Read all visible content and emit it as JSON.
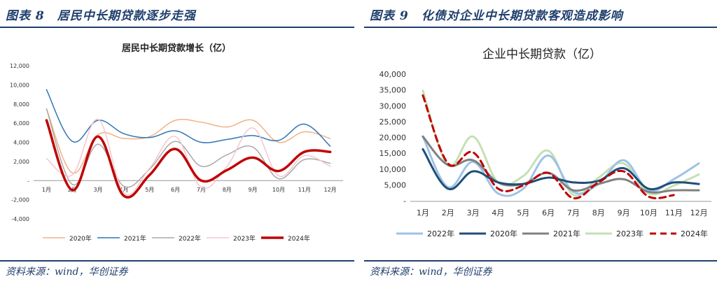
{
  "left": {
    "figure_label": "图表 8",
    "heading": "居民中长期贷款逐步走强",
    "source": "资料来源：wind，华创证券"
  },
  "right": {
    "figure_label": "图表 9",
    "heading": "化债对企业中长期贷款客观造成影响",
    "source": "资料来源：wind，华创证券"
  },
  "chart_data": [
    {
      "type": "line",
      "title": "居民中长期贷款增长（亿）",
      "categories": [
        "1月",
        "2月",
        "3月",
        "4月",
        "5月",
        "6月",
        "7月",
        "8月",
        "9月",
        "10月",
        "11月",
        "12月"
      ],
      "ylim": [
        -4000,
        12000
      ],
      "yticks": [
        "12,000",
        "10,000",
        "8,000",
        "6,000",
        "4,000",
        "2,000",
        "-",
        "-2,000",
        "-4,000"
      ],
      "ytick_values": [
        12000,
        10000,
        8000,
        6000,
        4000,
        2000,
        0,
        -2000,
        -4000
      ],
      "grid": false,
      "legend": "bottom",
      "series": [
        {
          "name": "2020年",
          "color": "#f2b183",
          "width": 1.5,
          "values": [
            7500,
            800,
            4800,
            4400,
            4600,
            6300,
            6100,
            5600,
            6300,
            4000,
            5100,
            4400
          ]
        },
        {
          "name": "2021年",
          "color": "#2e75b6",
          "width": 1.5,
          "values": [
            9500,
            4100,
            6300,
            4900,
            4500,
            5200,
            4000,
            4300,
            4700,
            4200,
            5900,
            3600
          ]
        },
        {
          "name": "2022年",
          "color": "#a9a9a9",
          "width": 1.5,
          "values": [
            7500,
            -400,
            3800,
            -600,
            1200,
            4100,
            1500,
            2700,
            3500,
            200,
            2200,
            1800
          ]
        },
        {
          "name": "2023年",
          "color": "#f4c7cf",
          "width": 1.5,
          "values": [
            2300,
            600,
            6400,
            -1300,
            1300,
            4600,
            -700,
            1500,
            5500,
            500,
            2600,
            1500
          ]
        },
        {
          "name": "2024年",
          "color": "#c00000",
          "width": 3.5,
          "values": [
            6300,
            -1000,
            4600,
            -1600,
            600,
            3300,
            0,
            1100,
            2400,
            1000,
            3000,
            3000
          ]
        }
      ]
    },
    {
      "type": "line",
      "title": "企业中长期贷款（亿）",
      "categories": [
        "1月",
        "2月",
        "3月",
        "4月",
        "5月",
        "6月",
        "7月",
        "8月",
        "9月",
        "10月",
        "11月",
        "12月"
      ],
      "ylim": [
        0,
        40000
      ],
      "yticks": [
        "40,000",
        "35,000",
        "30,000",
        "25,000",
        "20,000",
        "15,000",
        "10,000",
        "5,000",
        "-"
      ],
      "ytick_values": [
        40000,
        35000,
        30000,
        25000,
        20000,
        15000,
        10000,
        5000,
        0
      ],
      "grid": false,
      "legend": "bottom",
      "series": [
        {
          "name": "2022年",
          "color": "#9dc3e6",
          "width": 3,
          "dash": "",
          "values": [
            20500,
            4500,
            12500,
            2500,
            4000,
            14500,
            3000,
            5500,
            13000,
            3500,
            7000,
            12000
          ]
        },
        {
          "name": "2020年",
          "color": "#1f4e79",
          "width": 3,
          "dash": "",
          "values": [
            16500,
            4000,
            9500,
            6000,
            5500,
            7500,
            6000,
            6500,
            10500,
            4000,
            6000,
            5500
          ]
        },
        {
          "name": "2021年",
          "color": "#808080",
          "width": 3,
          "dash": "",
          "values": [
            20500,
            11500,
            13000,
            6000,
            5500,
            9000,
            3500,
            5500,
            7000,
            3000,
            3500,
            3500
          ]
        },
        {
          "name": "2023年",
          "color": "#c5e0b4",
          "width": 3,
          "dash": "",
          "values": [
            35000,
            11500,
            20500,
            6000,
            8000,
            16000,
            2000,
            7500,
            12000,
            2500,
            5000,
            8500
          ]
        },
        {
          "name": "2024年",
          "color": "#c00000",
          "width": 3,
          "dash": "9 6",
          "values": [
            33500,
            12000,
            15500,
            4000,
            5000,
            9000,
            1000,
            6000,
            9500,
            1500,
            2000,
            null
          ]
        }
      ]
    }
  ]
}
